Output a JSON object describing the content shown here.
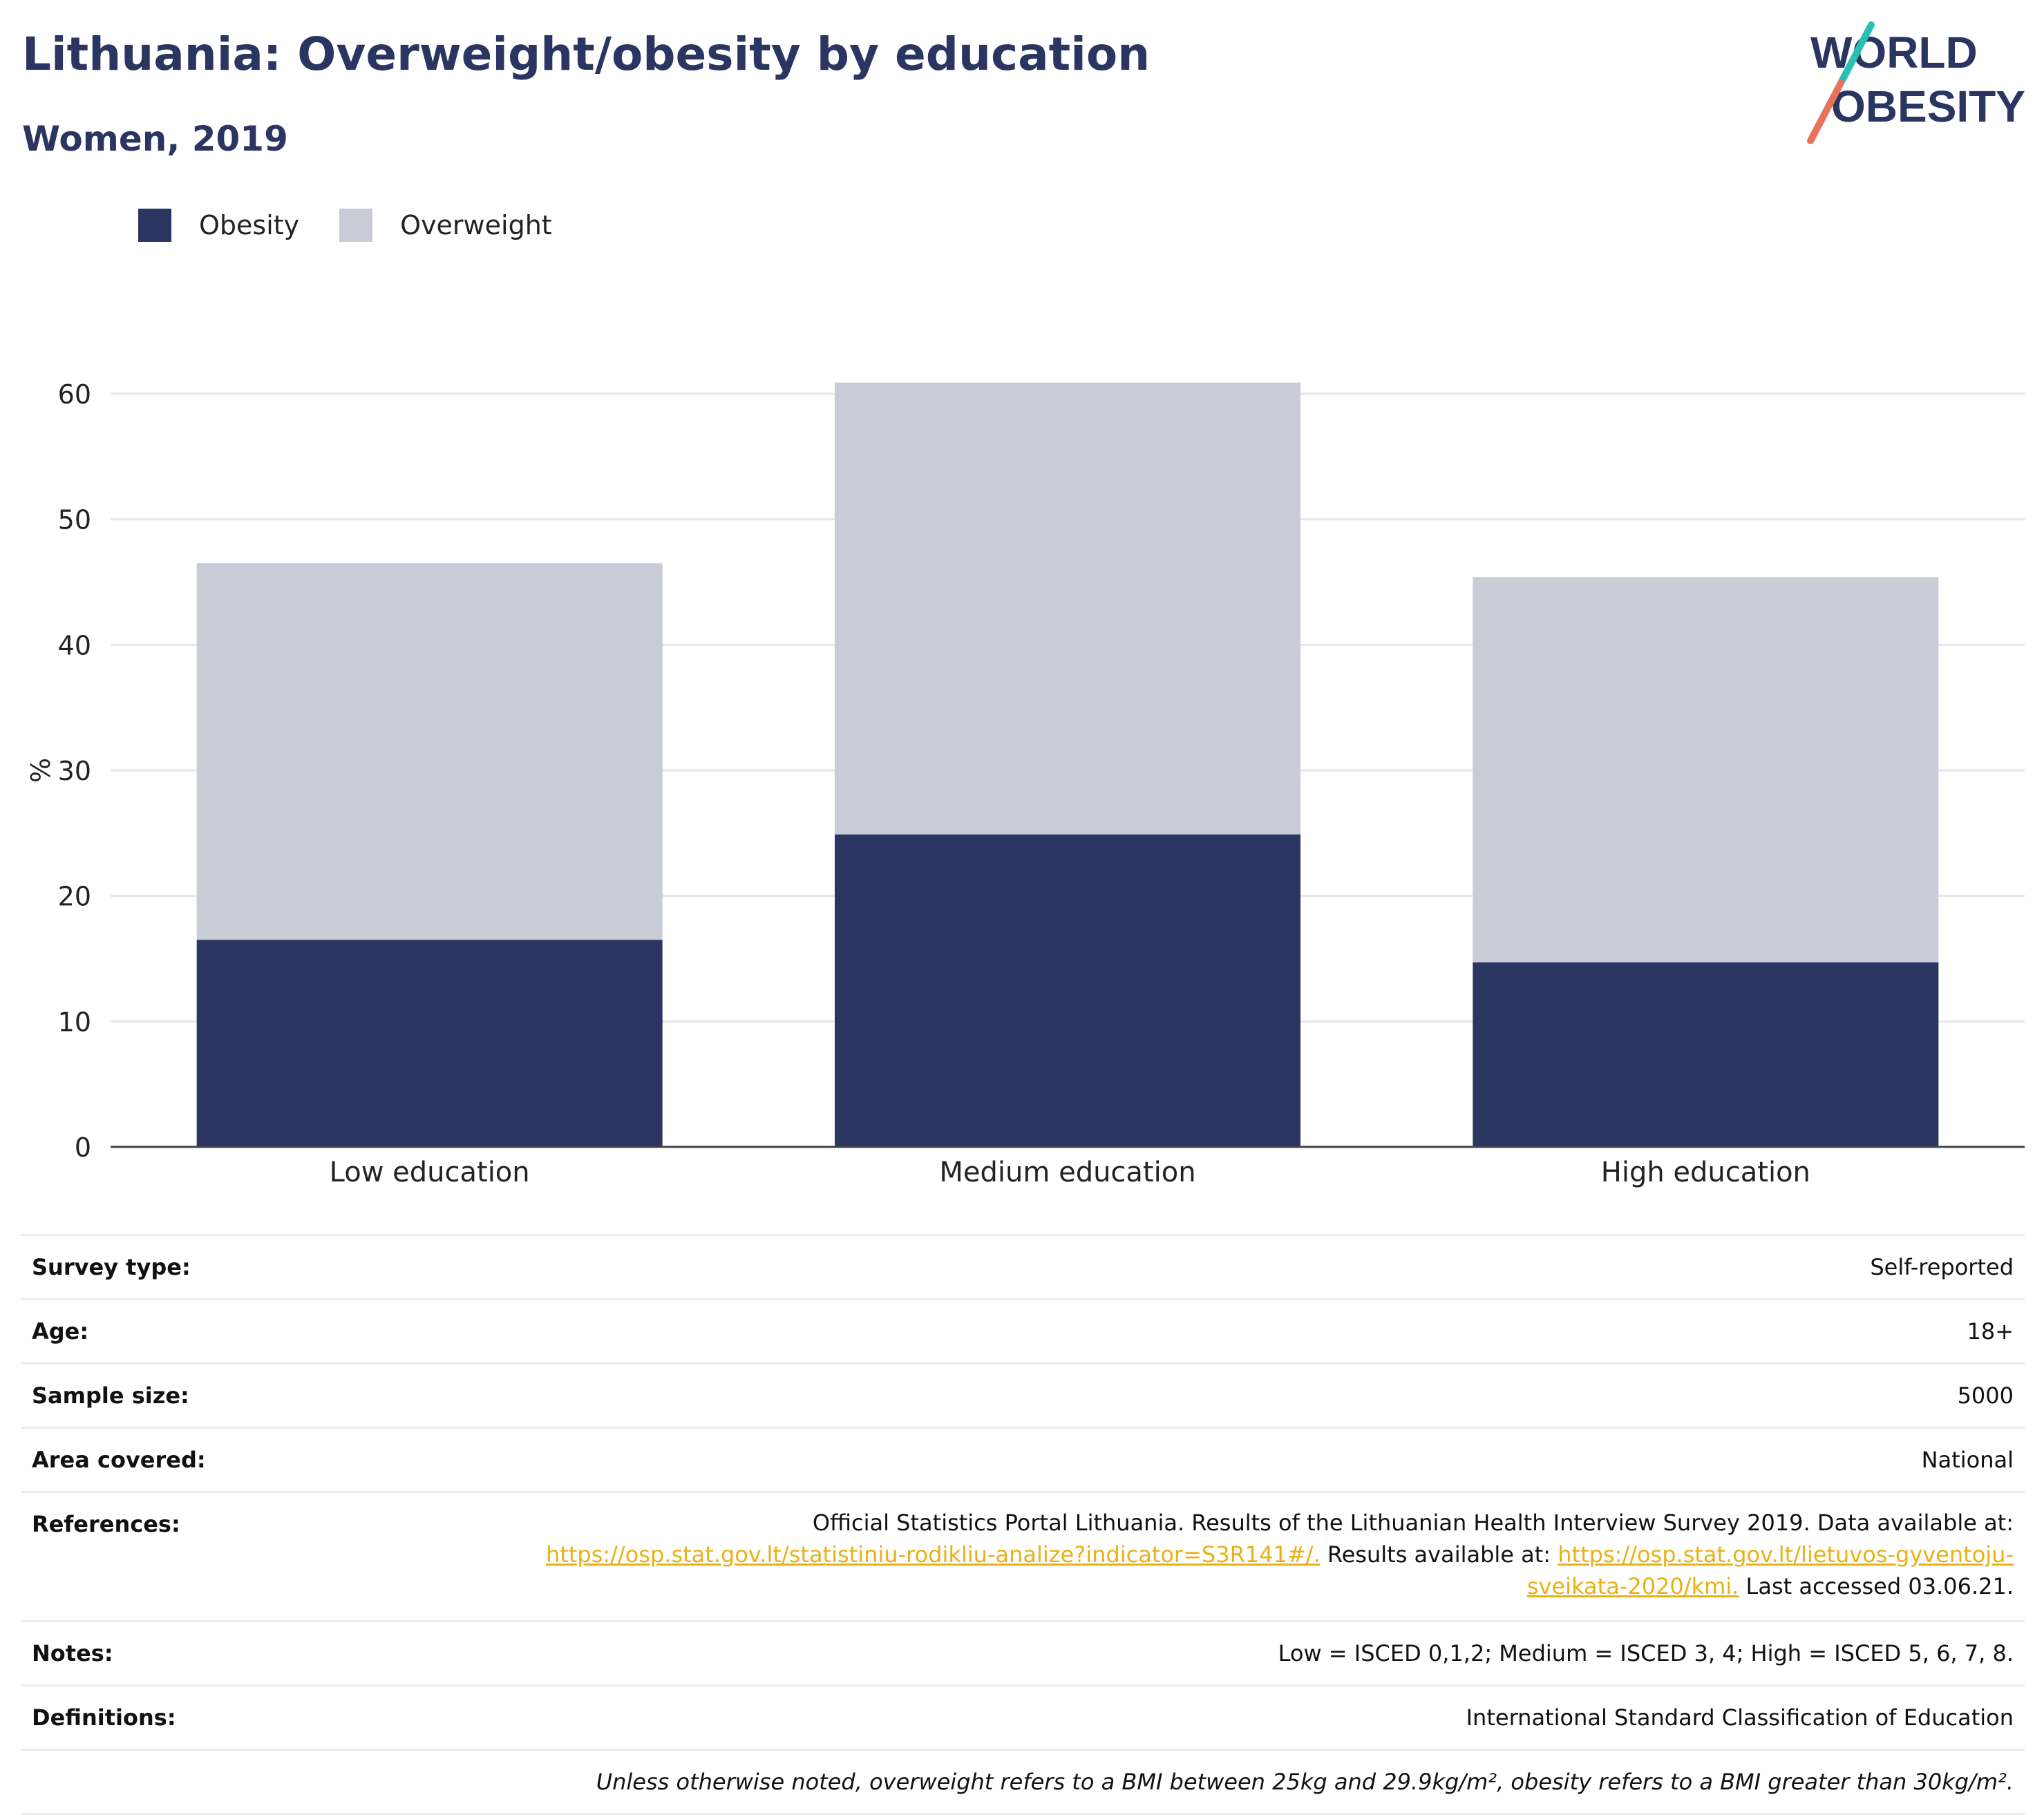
{
  "header": {
    "title": "Lithuania: Overweight/obesity by education",
    "subtitle": "Women, 2019"
  },
  "logo": {
    "line1": "WORLD",
    "line2": "OBESITY"
  },
  "colors": {
    "obesity": "#2a3561",
    "overweight": "#c9cbd7",
    "link": "#e9b115",
    "title": "#2a3561"
  },
  "chart_data": {
    "type": "bar",
    "stacked": true,
    "categories": [
      "Low education",
      "Medium education",
      "High education"
    ],
    "series": [
      {
        "name": "Obesity",
        "values": [
          16.5,
          24.9,
          14.7
        ]
      },
      {
        "name": "Overweight",
        "values": [
          30.0,
          36.0,
          30.7
        ]
      }
    ],
    "ylabel": "%",
    "ylim": [
      0,
      62
    ],
    "yticks": [
      0,
      10,
      20,
      30,
      40,
      50,
      60
    ],
    "grid": true,
    "legend": "top-left"
  },
  "info": {
    "rows": [
      {
        "key": "Survey type:",
        "value": "Self-reported"
      },
      {
        "key": "Age:",
        "value": "18+"
      },
      {
        "key": "Sample size:",
        "value": "5000"
      },
      {
        "key": "Area covered:",
        "value": "National"
      }
    ],
    "references": {
      "key": "References:",
      "text1": "Official Statistics Portal Lithuania. Results of the Lithuanian Health Interview Survey 2019. Data available at:",
      "link1": "https://osp.stat.gov.lt/statistiniu-rodikliu-analize?indicator=S3R141#/.",
      "text2": "Results available at:",
      "link2a": "https://osp.stat.gov.lt/lietuvos-gyventoju-",
      "link2b": "sveikata-2020/kmi.",
      "text3": "Last accessed 03.06.21."
    },
    "notes": {
      "key": "Notes:",
      "value": "Low = ISCED 0,1,2; Medium = ISCED 3, 4; High = ISCED 5, 6, 7, 8."
    },
    "definitions": {
      "key": "Definitions:",
      "value": "International Standard Classification of Education"
    },
    "footnote": "Unless otherwise noted, overweight refers to a BMI between 25kg and 29.9kg/m², obesity refers to a BMI greater than 30kg/m²."
  }
}
